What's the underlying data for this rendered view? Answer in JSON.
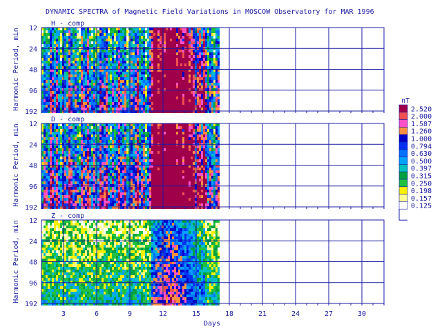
{
  "title": "DYNAMIC SPECTRA of Magnetic Field Variations in MOSCOW Observatory for MAR 1996",
  "colors": {
    "axis": "#1a1aa0",
    "text": "#1a1aa0",
    "background": "#ffffff"
  },
  "chart_data": [
    {
      "type": "heatmap",
      "panel_label": "H - comp",
      "ylabel": "Harmonic Period, min",
      "xlabel": "",
      "y_ticks": [
        "12",
        "24",
        "48",
        "96",
        "192"
      ],
      "y_tick_values": [
        12,
        24,
        48,
        96,
        192
      ],
      "y_scale": "log2",
      "x_ticks": [
        "3",
        "6",
        "9",
        "12",
        "15",
        "18",
        "21",
        "24",
        "27",
        "30"
      ],
      "xlim": [
        1,
        32
      ],
      "data_xlim": [
        1,
        17
      ],
      "grid": true
    },
    {
      "type": "heatmap",
      "panel_label": "D - comp",
      "ylabel": "Harmonic Period, min",
      "xlabel": "",
      "y_ticks": [
        "12",
        "24",
        "48",
        "96",
        "192"
      ],
      "y_tick_values": [
        12,
        24,
        48,
        96,
        192
      ],
      "y_scale": "log2",
      "x_ticks": [
        "3",
        "6",
        "9",
        "12",
        "15",
        "18",
        "21",
        "24",
        "27",
        "30"
      ],
      "xlim": [
        1,
        32
      ],
      "data_xlim": [
        1,
        17
      ],
      "grid": true
    },
    {
      "type": "heatmap",
      "panel_label": "Z - comp",
      "ylabel": "Harmonic Period, min",
      "xlabel": "Days",
      "y_ticks": [
        "12",
        "24",
        "48",
        "96",
        "192"
      ],
      "y_tick_values": [
        12,
        24,
        48,
        96,
        192
      ],
      "y_scale": "log2",
      "x_ticks": [
        "3",
        "6",
        "9",
        "12",
        "15",
        "18",
        "21",
        "24",
        "27",
        "30"
      ],
      "xlim": [
        1,
        32
      ],
      "data_xlim": [
        1,
        17
      ],
      "grid": true
    }
  ],
  "legend": {
    "unit": "nT",
    "levels": [
      "2.520",
      "2.000",
      "1.587",
      "1.260",
      "1.000",
      "0.794",
      "0.630",
      "0.500",
      "0.397",
      "0.315",
      "0.250",
      "0.198",
      "0.157",
      "0.125"
    ],
    "colors": [
      "#a0004a",
      "#f05050",
      "#ff50c8",
      "#ff9040",
      "#0000c8",
      "#0030f0",
      "#0070ff",
      "#00a0ff",
      "#00c0c0",
      "#00a040",
      "#20c040",
      "#f8f000",
      "#fcfc90",
      "#ffffff"
    ]
  }
}
